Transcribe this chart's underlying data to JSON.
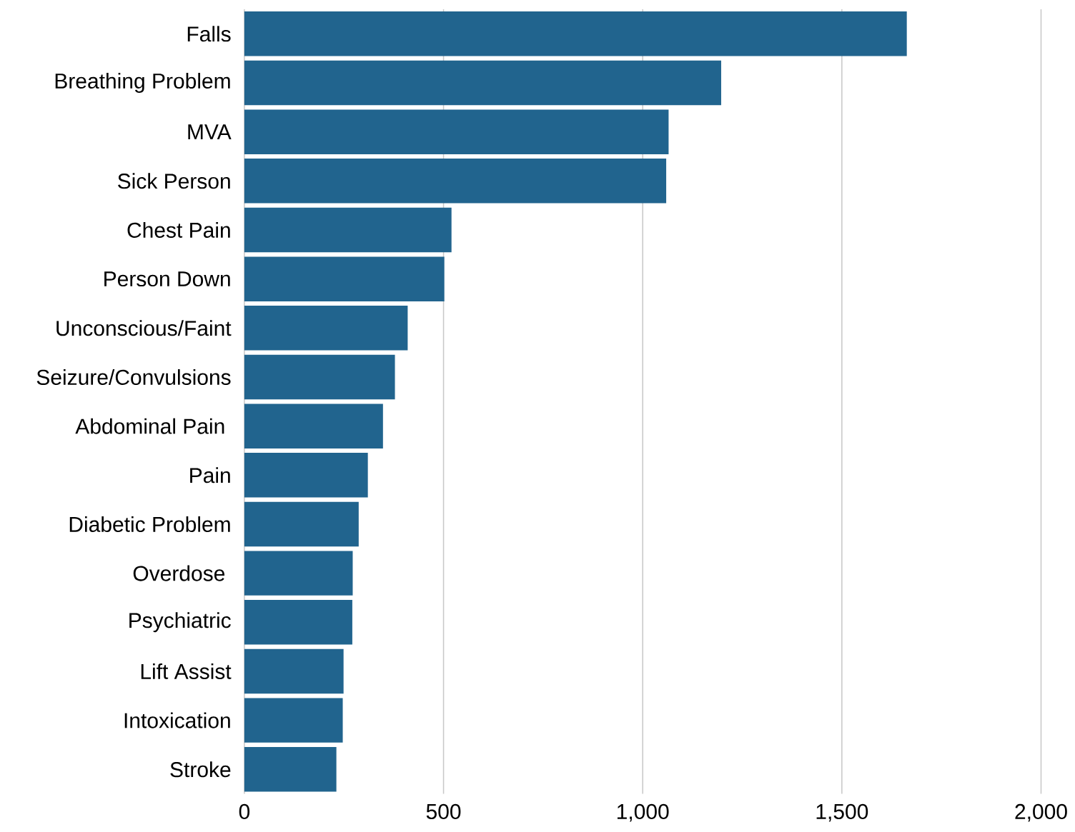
{
  "chart_data": {
    "type": "bar",
    "orientation": "horizontal",
    "categories": [
      "Falls",
      "Breathing Problem",
      "MVA",
      "Sick Person",
      "Chest Pain",
      "Person Down",
      "Unconscious/Faint",
      "Seizure/Convulsions",
      "Abdominal Pain ",
      "Pain",
      "Diabetic Problem",
      "Overdose ",
      "Psychiatric",
      "Lift Assist",
      "Intoxication",
      "Stroke"
    ],
    "values": [
      1663,
      1197,
      1065,
      1059,
      520,
      502,
      410,
      378,
      348,
      310,
      287,
      272,
      271,
      249,
      247,
      231
    ],
    "color": "#21648e",
    "xlim": [
      0,
      2000
    ],
    "xticks": [
      0,
      500,
      {
        "value": 1000,
        "label": "1,000"
      },
      {
        "value": 1500,
        "label": "1,500"
      },
      {
        "value": 2000,
        "label": "2,000"
      }
    ],
    "grid": "x"
  }
}
